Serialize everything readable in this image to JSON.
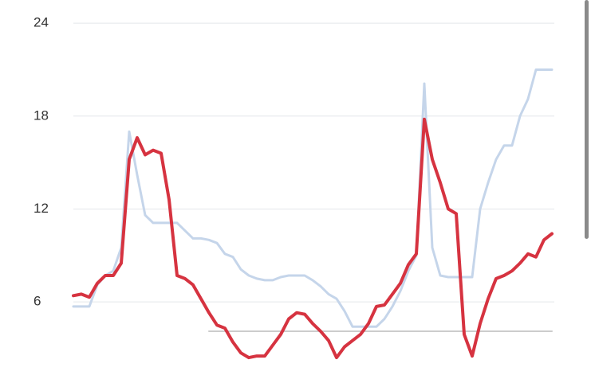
{
  "chart_data": {
    "type": "line",
    "ylim": [
      0.5,
      25.5
    ],
    "yticks": [
      6,
      12,
      18,
      24
    ],
    "grid": true,
    "series": [
      {
        "color": "#c5d5ea",
        "values": [
          5.7,
          5.7,
          5.7,
          7.1,
          7.7,
          8.0,
          9.5,
          17.0,
          14.2,
          11.6,
          11.1,
          11.1,
          11.1,
          11.1,
          10.6,
          10.1,
          10.1,
          10.0,
          9.8,
          9.1,
          8.9,
          8.1,
          7.7,
          7.5,
          7.4,
          7.4,
          7.6,
          7.7,
          7.7,
          7.7,
          7.4,
          7.0,
          6.5,
          6.2,
          5.4,
          4.4,
          4.4,
          4.4,
          4.4,
          4.9,
          5.7,
          6.7,
          8.0,
          9.0,
          20.1,
          9.5,
          7.7,
          7.6,
          7.6,
          7.6,
          7.6,
          12.0,
          13.7,
          15.2,
          16.1,
          16.1,
          18.0,
          19.1,
          21.0,
          21.0,
          21.0
        ]
      },
      {
        "color": "#cccccc",
        "values": [
          null,
          null,
          null,
          null,
          null,
          null,
          null,
          null,
          null,
          null,
          null,
          null,
          null,
          null,
          null,
          null,
          null,
          4.1,
          4.1,
          4.1,
          4.1,
          4.1,
          4.1,
          4.1,
          4.1,
          4.1,
          4.1,
          4.1,
          4.1,
          4.1,
          4.1,
          4.1,
          4.1,
          4.1,
          4.1,
          4.1,
          4.1,
          4.1,
          4.1,
          4.1,
          4.1,
          4.1,
          4.1,
          4.1,
          4.1,
          4.1,
          4.1,
          4.1,
          4.1,
          4.1,
          4.1,
          4.1,
          4.1,
          4.1,
          4.1,
          4.1,
          4.1,
          4.1,
          4.1,
          4.1,
          4.1
        ]
      },
      {
        "color": "#d63340",
        "values": [
          6.4,
          6.5,
          6.3,
          7.2,
          7.7,
          7.7,
          8.5,
          15.2,
          16.6,
          15.5,
          15.8,
          15.6,
          12.6,
          7.7,
          7.5,
          7.1,
          6.2,
          5.3,
          4.5,
          4.3,
          3.4,
          2.7,
          2.4,
          2.5,
          2.5,
          3.2,
          3.9,
          4.9,
          5.3,
          5.2,
          4.6,
          4.1,
          3.5,
          2.4,
          3.1,
          3.5,
          3.9,
          4.6,
          5.7,
          5.8,
          6.5,
          7.2,
          8.4,
          9.1,
          17.8,
          15.2,
          13.7,
          12.0,
          11.7,
          3.9,
          2.5,
          4.6,
          6.2,
          7.5,
          7.7,
          8.0,
          8.5,
          9.1,
          8.9,
          10.0,
          10.4
        ]
      }
    ]
  }
}
